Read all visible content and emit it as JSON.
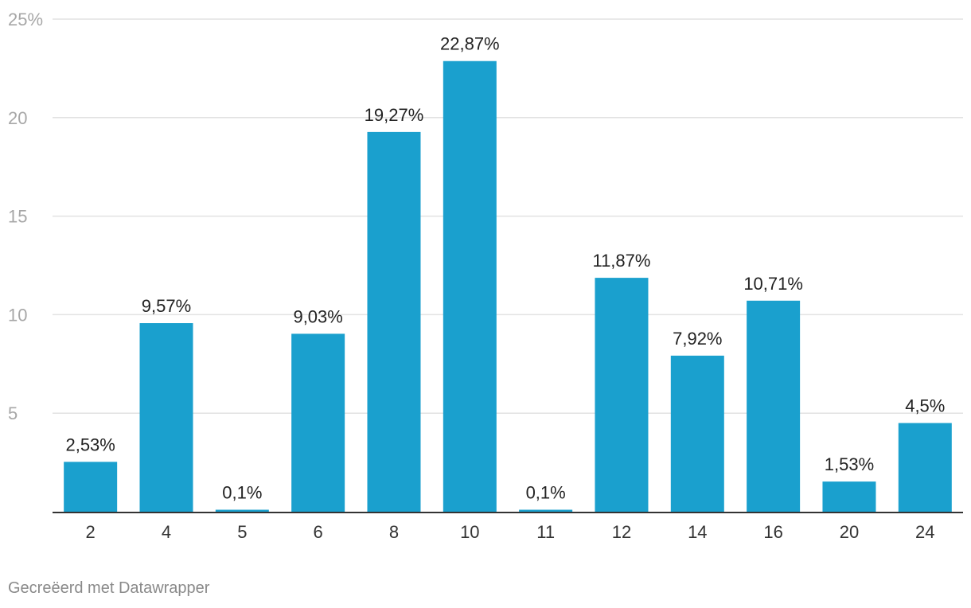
{
  "chart_data": {
    "type": "bar",
    "categories": [
      "2",
      "4",
      "5",
      "6",
      "8",
      "10",
      "11",
      "12",
      "14",
      "16",
      "20",
      "24"
    ],
    "values": [
      2.53,
      9.57,
      0.1,
      9.03,
      19.27,
      22.87,
      0.1,
      11.87,
      7.92,
      10.71,
      1.53,
      4.5
    ],
    "value_labels": [
      "2,53%",
      "9,57%",
      "0,1%",
      "9,03%",
      "19,27%",
      "22,87%",
      "0,1%",
      "11,87%",
      "7,92%",
      "10,71%",
      "1,53%",
      "4,5%"
    ],
    "ylim": [
      0,
      25
    ],
    "yticks": [
      5,
      10,
      15,
      20,
      25
    ],
    "ytick_labels": [
      "5",
      "10",
      "15",
      "20",
      "25%"
    ],
    "grid": true,
    "bar_color": "#1aa0ce"
  },
  "footer": {
    "credit": "Gecreëerd met Datawrapper"
  }
}
